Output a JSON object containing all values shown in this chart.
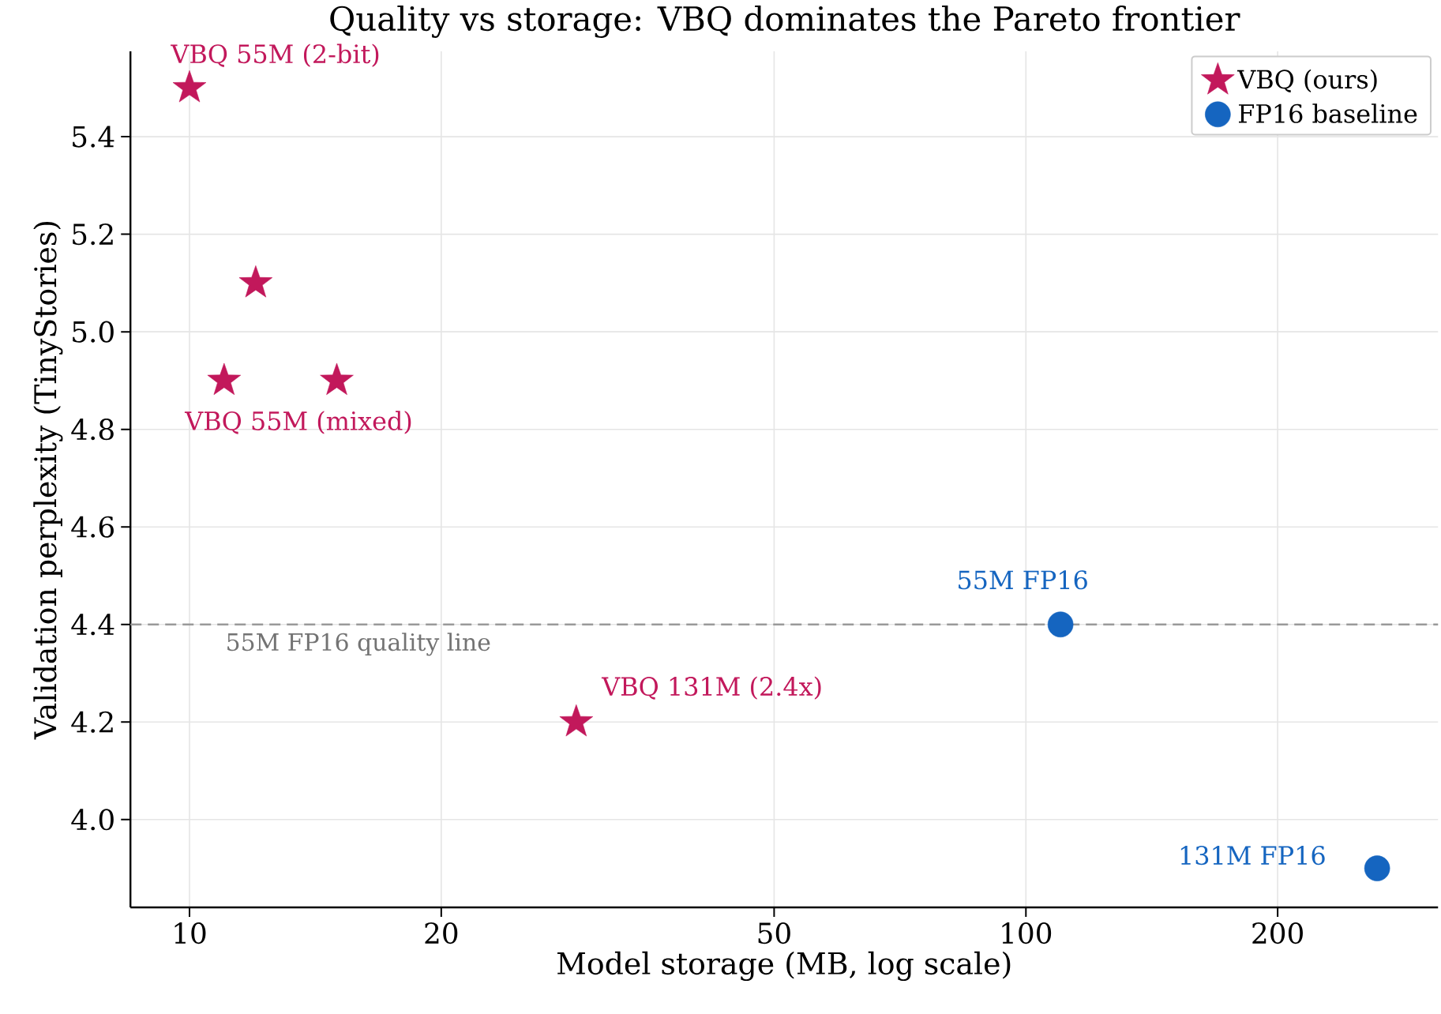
{
  "chart_data": {
    "type": "scatter",
    "title": "Quality vs storage: VBQ dominates the Pareto frontier",
    "xlabel": "Model storage (MB, log scale)",
    "ylabel": "Validation perplexity (TinyStories)",
    "log": "x",
    "xlim": [
      8.5,
      311
    ],
    "ylim": [
      3.82,
      5.575
    ],
    "xticks": [
      10,
      20,
      50,
      100,
      200
    ],
    "yticks": [
      {
        "value": 4,
        "label": "4.0"
      },
      {
        "value": 4.2,
        "label": "4.2"
      },
      {
        "value": 4.4,
        "label": "4.4"
      },
      {
        "value": 4.6,
        "label": "4.6"
      },
      {
        "value": 4.8,
        "label": "4.8"
      },
      {
        "value": 5,
        "label": "5.0"
      },
      {
        "value": 5.2,
        "label": "5.2"
      },
      {
        "value": 5.4,
        "label": "5.4"
      }
    ],
    "grid": true,
    "legend": "top right",
    "series": [
      {
        "name": "VBQ (ours)",
        "color": "#c2185b",
        "marker": "star",
        "x": [
          10,
          11,
          12,
          15,
          29
        ],
        "values": [
          5.5,
          4.9,
          5.1,
          4.9,
          4.2
        ]
      },
      {
        "name": "FP16 baseline",
        "color": "#1565c0",
        "marker": "circle",
        "x": [
          110,
          263
        ],
        "values": [
          4.4,
          3.9
        ]
      }
    ],
    "ref_lines": [
      {
        "axis": "y",
        "value": 4.4,
        "label": "55M FP16 quality line",
        "color": "#999999",
        "line_style": "dashed"
      }
    ],
    "annotations": [
      {
        "text": "VBQ 55M (2-bit)",
        "x": 10,
        "y": 5.5
      },
      {
        "text": "VBQ 55M (mixed)",
        "x": 11,
        "y": 4.9
      },
      {
        "text": "VBQ 131M (2.4x)",
        "x": 29,
        "y": 4.2
      },
      {
        "text": "55M FP16",
        "x": 110,
        "y": 4.4
      },
      {
        "text": "131M FP16",
        "x": 263,
        "y": 3.9
      }
    ]
  }
}
